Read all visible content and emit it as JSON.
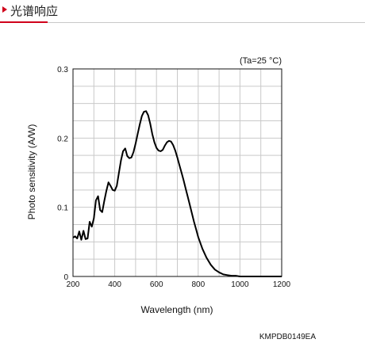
{
  "header": {
    "title": "光谱响应",
    "marker_icon": "triangle-right-icon",
    "accent_color": "#d0021b"
  },
  "chart_data": {
    "type": "line",
    "title": "",
    "xlabel": "Wavelength (nm)",
    "ylabel": "Photo sensitivity (A/W)",
    "xlim": [
      200,
      1200
    ],
    "ylim": [
      0,
      0.3
    ],
    "x_ticks": [
      200,
      400,
      600,
      800,
      1000,
      1200
    ],
    "y_ticks": [
      0,
      0.1,
      0.2,
      0.3
    ],
    "x_tick_labels": [
      "200",
      "400",
      "600",
      "800",
      "1000",
      "1200"
    ],
    "y_tick_labels": [
      "0",
      "0.1",
      "0.2",
      "0.3"
    ],
    "grid": true,
    "annotation": "(Ta=25 °C)",
    "footer_code": "KMPDB0149EA",
    "line_color": "#000000",
    "series": [
      {
        "x": [
          200,
          210,
          220,
          230,
          240,
          250,
          260,
          270,
          280,
          290,
          300,
          310,
          320,
          330,
          340,
          350,
          360,
          370,
          380,
          390,
          400,
          410,
          420,
          430,
          440,
          450,
          460,
          470,
          480,
          490,
          500,
          510,
          520,
          530,
          540,
          550,
          560,
          570,
          580,
          590,
          600,
          610,
          620,
          630,
          640,
          650,
          660,
          670,
          680,
          690,
          700,
          710,
          720,
          730,
          740,
          750,
          760,
          770,
          780,
          790,
          800,
          820,
          840,
          860,
          880,
          900,
          920,
          940,
          960,
          980,
          1000,
          1020,
          1040,
          1060,
          1080,
          1100,
          1120,
          1140,
          1160,
          1180,
          1200
        ],
        "y": [
          0.056,
          0.058,
          0.055,
          0.065,
          0.053,
          0.066,
          0.054,
          0.055,
          0.079,
          0.072,
          0.084,
          0.11,
          0.116,
          0.096,
          0.093,
          0.109,
          0.124,
          0.136,
          0.131,
          0.125,
          0.124,
          0.131,
          0.15,
          0.168,
          0.181,
          0.185,
          0.174,
          0.171,
          0.172,
          0.18,
          0.192,
          0.206,
          0.22,
          0.232,
          0.238,
          0.239,
          0.233,
          0.221,
          0.206,
          0.194,
          0.186,
          0.182,
          0.181,
          0.183,
          0.189,
          0.194,
          0.196,
          0.195,
          0.19,
          0.182,
          0.172,
          0.161,
          0.15,
          0.139,
          0.127,
          0.115,
          0.103,
          0.091,
          0.079,
          0.068,
          0.057,
          0.04,
          0.027,
          0.017,
          0.01,
          0.006,
          0.003,
          0.002,
          0.001,
          0.001,
          0.0,
          0.0,
          0.0,
          0.0,
          0.0,
          0.0,
          0.0,
          0.0,
          0.0,
          0.0,
          0.0
        ]
      }
    ]
  }
}
